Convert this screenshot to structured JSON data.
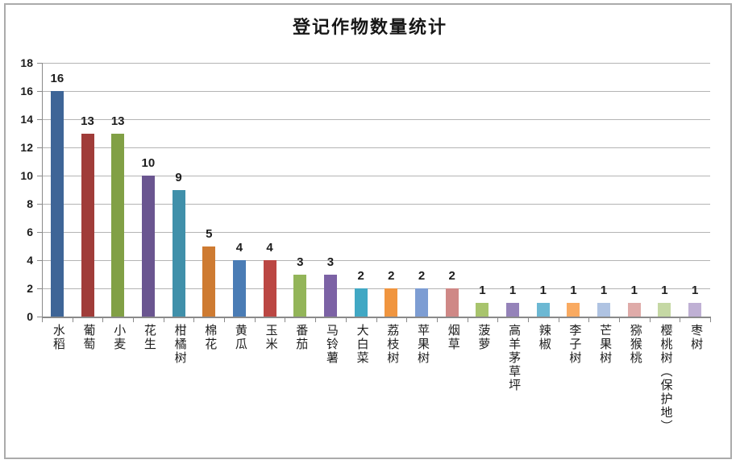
{
  "window": {
    "background": "#FFFFFF",
    "frame_border_color": "#ABABAB"
  },
  "chart_data": {
    "type": "bar",
    "title": "登记作物数量统计",
    "categories": [
      "水稻",
      "葡萄",
      "小麦",
      "花生",
      "柑橘树",
      "棉花",
      "黄瓜",
      "玉米",
      "番茄",
      "马铃薯",
      "大白菜",
      "荔枝树",
      "苹果树",
      "烟草",
      "菠萝",
      "高羊茅草坪",
      "辣椒",
      "李子树",
      "芒果树",
      "猕猴桃",
      "樱桃树（保护地）",
      "枣树"
    ],
    "values": [
      16,
      13,
      13,
      10,
      9,
      5,
      4,
      4,
      3,
      3,
      2,
      2,
      2,
      2,
      1,
      1,
      1,
      1,
      1,
      1,
      1,
      1
    ],
    "bar_colors": [
      "#3E6597",
      "#A03C39",
      "#81A045",
      "#6A5590",
      "#4090AA",
      "#CE7B32",
      "#4A7CB5",
      "#BB4743",
      "#93B559",
      "#7C62A5",
      "#41A8C4",
      "#F0953F",
      "#7D9DD3",
      "#CF8886",
      "#A8C46D",
      "#9583B9",
      "#6CB8D3",
      "#F9AA61",
      "#AFC3E2",
      "#DFABA9",
      "#C5D8A4",
      "#BFB0D4"
    ],
    "xlabel": "",
    "ylabel": "",
    "ylim": [
      0,
      18
    ],
    "ytick_step": 2,
    "ytick_labels": [
      "0",
      "2",
      "4",
      "6",
      "8",
      "10",
      "12",
      "14",
      "16",
      "18"
    ],
    "grid": "horizontal",
    "legend_position": "none",
    "value_label_position": "outside-end",
    "gridline_color": "#B4B4B4",
    "axis_color": "#8A8A8A",
    "text_color": "#1D1D1D"
  }
}
